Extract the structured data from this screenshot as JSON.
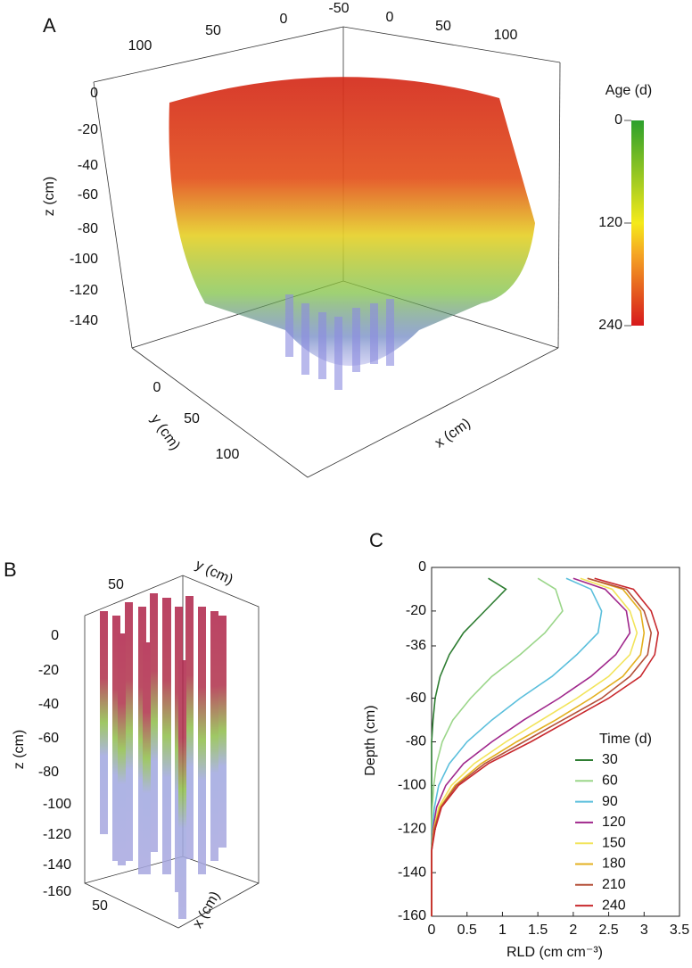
{
  "panel_a": {
    "label": "A",
    "top_ticks": [
      100,
      50,
      0,
      -50,
      0,
      50,
      100
    ],
    "z_label": "z (cm)",
    "z_ticks": [
      0,
      -20,
      -40,
      -60,
      -80,
      -100,
      -120,
      -140
    ],
    "y_label": "y (cm)",
    "y_ticks": [
      0,
      50,
      100
    ],
    "x_label": "x (cm)",
    "colorbar": {
      "title": "Age (d)",
      "ticks": [
        0,
        120,
        240
      ],
      "lim": [
        0,
        240
      ]
    }
  },
  "panel_b": {
    "label": "B",
    "top_tick": 50,
    "y_label": "y (cm)",
    "z_label": "z (cm)",
    "z_ticks": [
      0,
      -20,
      -40,
      -60,
      -80,
      -100,
      -120,
      -140,
      -160
    ],
    "bottom_tick": 50,
    "x_label": "x (cm)"
  },
  "chart_data": {
    "type": "line",
    "label": "C",
    "x_label": "RLD (cm cm⁻³)",
    "y_label": "Depth (cm)",
    "legend_title": "Time (d)",
    "xlim": [
      0,
      3.5
    ],
    "xticks": [
      0,
      0.5,
      1,
      1.5,
      2,
      2.5,
      3,
      3.5
    ],
    "ylim": [
      0,
      -160
    ],
    "yticks": [
      0,
      -20,
      -36,
      -60,
      -80,
      -100,
      -120,
      -140,
      -160
    ],
    "y": [
      -5,
      -10,
      -20,
      -30,
      -40,
      -50,
      -60,
      -70,
      -80,
      -90,
      -100,
      -110,
      -120,
      -130,
      -140,
      -150,
      -160
    ],
    "series": [
      {
        "name": "30",
        "color": "#2e7d32",
        "values": [
          0.8,
          1.05,
          0.75,
          0.45,
          0.25,
          0.12,
          0.05,
          0.02,
          0,
          0,
          0,
          0,
          0,
          0,
          0,
          0,
          0
        ]
      },
      {
        "name": "60",
        "color": "#9bd68a",
        "values": [
          1.5,
          1.75,
          1.85,
          1.6,
          1.25,
          0.85,
          0.55,
          0.3,
          0.15,
          0.07,
          0.03,
          0.01,
          0,
          0,
          0,
          0,
          0
        ]
      },
      {
        "name": "90",
        "color": "#5bbfdc",
        "values": [
          1.9,
          2.25,
          2.4,
          2.35,
          2.05,
          1.7,
          1.25,
          0.85,
          0.5,
          0.25,
          0.1,
          0.04,
          0.01,
          0,
          0,
          0,
          0
        ]
      },
      {
        "name": "120",
        "color": "#a0288c",
        "values": [
          2.0,
          2.45,
          2.75,
          2.8,
          2.6,
          2.25,
          1.8,
          1.3,
          0.85,
          0.45,
          0.2,
          0.07,
          0.02,
          0,
          0,
          0,
          0
        ]
      },
      {
        "name": "150",
        "color": "#f2e45a",
        "values": [
          2.1,
          2.55,
          2.8,
          2.9,
          2.8,
          2.5,
          2.05,
          1.55,
          1.05,
          0.6,
          0.28,
          0.1,
          0.03,
          0,
          0,
          0,
          0
        ]
      },
      {
        "name": "180",
        "color": "#e3b020",
        "values": [
          2.2,
          2.7,
          2.95,
          3.0,
          2.95,
          2.7,
          2.25,
          1.75,
          1.2,
          0.7,
          0.33,
          0.12,
          0.03,
          0,
          0,
          0,
          0
        ]
      },
      {
        "name": "210",
        "color": "#b5523b",
        "values": [
          2.2,
          2.75,
          3.0,
          3.1,
          3.05,
          2.8,
          2.4,
          1.85,
          1.3,
          0.75,
          0.35,
          0.13,
          0.04,
          0,
          0,
          0,
          0
        ]
      },
      {
        "name": "240",
        "color": "#c8282d",
        "values": [
          2.3,
          2.85,
          3.1,
          3.2,
          3.15,
          2.95,
          2.5,
          1.95,
          1.4,
          0.8,
          0.38,
          0.14,
          0.05,
          0,
          0,
          0,
          0
        ]
      }
    ]
  }
}
